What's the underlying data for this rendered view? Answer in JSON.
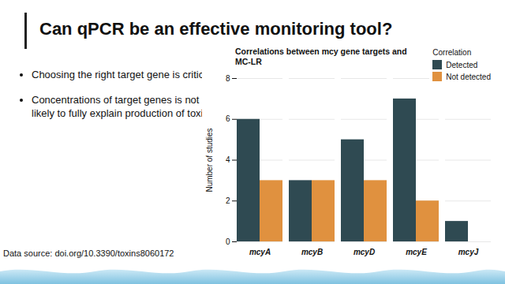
{
  "slide": {
    "title": "Can qPCR be an effective monitoring tool?",
    "bullets": [
      "Choosing the right target gene is critical",
      "Concentrations of target genes is not likely to fully explain production of toxins"
    ],
    "source": "Data source: doi.org/10.3390/toxins8060172"
  },
  "chart_data": {
    "type": "bar",
    "title": "Correlations between mcy gene targets and MC-LR",
    "categories": [
      "mcyA",
      "mcyB",
      "mcyD",
      "mcyE",
      "mcyJ"
    ],
    "series": [
      {
        "name": "Detected",
        "color": "#2f4a52",
        "values": [
          6,
          3,
          5,
          7,
          1
        ]
      },
      {
        "name": "Not detected",
        "color": "#e0913f",
        "values": [
          3,
          3,
          3,
          2,
          0
        ]
      }
    ],
    "ylabel": "Number of studies",
    "legend_title": "Correlation",
    "ylim": [
      0,
      8
    ],
    "yticks": [
      0,
      2,
      4,
      6,
      8
    ],
    "grid": true,
    "legend": "top-right"
  }
}
